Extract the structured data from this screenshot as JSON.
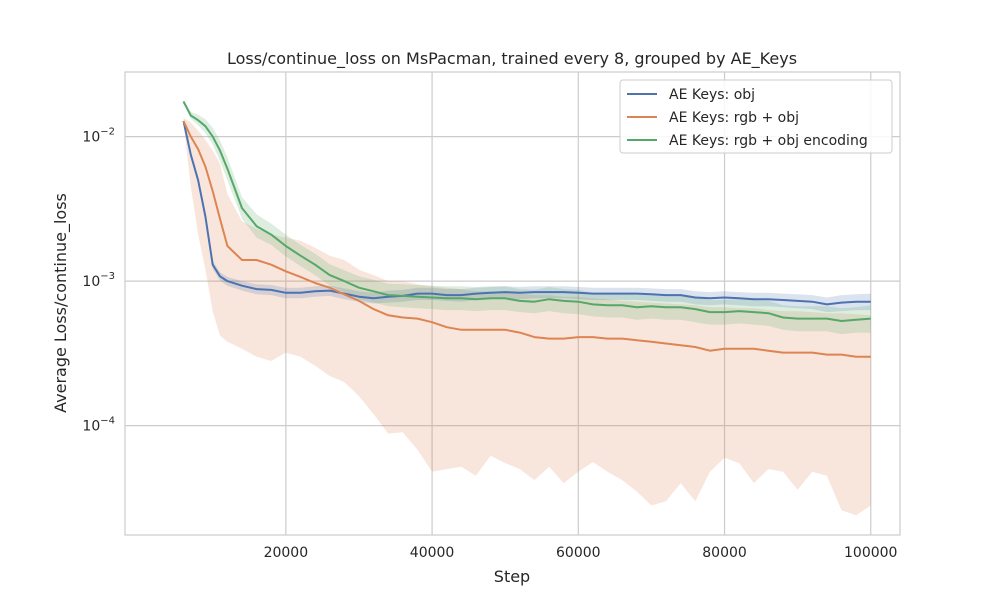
{
  "chart_data": {
    "type": "line",
    "title": "Loss/continue_loss on MsPacman, trained every 8, grouped by AE_Keys",
    "xlabel": "Step",
    "ylabel": "Average Loss/continue_loss",
    "xlim": [
      -2000,
      104000
    ],
    "xticks": [
      20000,
      40000,
      60000,
      80000,
      100000
    ],
    "xtick_labels": [
      "20000",
      "40000",
      "60000",
      "80000",
      "100000"
    ],
    "yscale": "log",
    "ylim": [
      1.75e-05,
      0.028
    ],
    "yticks": [
      0.0001,
      0.001,
      0.01
    ],
    "ytick_labels": [
      {
        "base": "10",
        "exp": "−4"
      },
      {
        "base": "10",
        "exp": "−3"
      },
      {
        "base": "10",
        "exp": "−2"
      }
    ],
    "grid": true,
    "legend_position": "top-right",
    "series": [
      {
        "name": "AE Keys: obj",
        "color": "#4c72b0",
        "x": [
          6000,
          7000,
          8000,
          9000,
          10000,
          11000,
          12000,
          14000,
          16000,
          18000,
          20000,
          22000,
          24000,
          26000,
          28000,
          30000,
          32000,
          34000,
          36000,
          38000,
          40000,
          42000,
          44000,
          46000,
          48000,
          50000,
          52000,
          54000,
          56000,
          58000,
          60000,
          62000,
          64000,
          66000,
          68000,
          70000,
          72000,
          74000,
          76000,
          78000,
          80000,
          82000,
          84000,
          86000,
          88000,
          90000,
          92000,
          94000,
          96000,
          98000,
          100000
        ],
        "y": [
          0.0128,
          0.0075,
          0.005,
          0.0028,
          0.0013,
          0.00108,
          0.001,
          0.00093,
          0.00088,
          0.00087,
          0.00083,
          0.00083,
          0.00085,
          0.00086,
          0.00082,
          0.00078,
          0.00076,
          0.00078,
          0.00079,
          0.00082,
          0.00082,
          0.0008,
          0.0008,
          0.00082,
          0.00083,
          0.00084,
          0.00083,
          0.00084,
          0.00084,
          0.00084,
          0.00083,
          0.00082,
          0.00082,
          0.00082,
          0.00082,
          0.00081,
          0.0008,
          0.0008,
          0.00077,
          0.00076,
          0.00077,
          0.00076,
          0.00075,
          0.00075,
          0.00074,
          0.00073,
          0.00072,
          0.00069,
          0.00071,
          0.00072,
          0.00072
        ],
        "band_low": [
          0.0126,
          0.0072,
          0.0047,
          0.0026,
          0.00122,
          0.00101,
          0.00093,
          0.00086,
          0.00081,
          0.0008,
          0.00076,
          0.00076,
          0.00078,
          0.00079,
          0.00075,
          0.00072,
          0.0007,
          0.00071,
          0.00072,
          0.00074,
          0.00074,
          0.00073,
          0.00072,
          0.00074,
          0.00075,
          0.00076,
          0.00075,
          0.00076,
          0.00076,
          0.00076,
          0.00075,
          0.00074,
          0.00074,
          0.00074,
          0.00074,
          0.00073,
          0.00072,
          0.00072,
          0.00069,
          0.00068,
          0.00069,
          0.00068,
          0.00067,
          0.00067,
          0.00066,
          0.00065,
          0.00064,
          0.00061,
          0.00062,
          0.00063,
          0.00063
        ],
        "band_high": [
          0.013,
          0.0078,
          0.0053,
          0.003,
          0.00138,
          0.00115,
          0.00107,
          0.001,
          0.00095,
          0.00094,
          0.0009,
          0.0009,
          0.00092,
          0.00093,
          0.00089,
          0.00085,
          0.00083,
          0.00086,
          0.00087,
          0.0009,
          0.0009,
          0.00088,
          0.00088,
          0.0009,
          0.00091,
          0.00092,
          0.00091,
          0.00092,
          0.00092,
          0.00092,
          0.00091,
          0.0009,
          0.0009,
          0.0009,
          0.0009,
          0.00089,
          0.00088,
          0.00088,
          0.00085,
          0.00084,
          0.00085,
          0.00084,
          0.00083,
          0.00083,
          0.00082,
          0.00081,
          0.0008,
          0.00077,
          0.0008,
          0.00081,
          0.00082
        ]
      },
      {
        "name": "AE Keys: rgb + obj",
        "color": "#dd8452",
        "x": [
          6000,
          7000,
          8000,
          9000,
          10000,
          11000,
          12000,
          14000,
          16000,
          18000,
          20000,
          22000,
          24000,
          26000,
          28000,
          30000,
          32000,
          34000,
          36000,
          38000,
          40000,
          42000,
          44000,
          46000,
          48000,
          50000,
          52000,
          54000,
          56000,
          58000,
          60000,
          62000,
          64000,
          66000,
          68000,
          70000,
          72000,
          74000,
          76000,
          78000,
          80000,
          82000,
          84000,
          86000,
          88000,
          90000,
          92000,
          94000,
          96000,
          98000,
          100000
        ],
        "y": [
          0.0128,
          0.01,
          0.0082,
          0.0062,
          0.0042,
          0.0027,
          0.00175,
          0.0014,
          0.0014,
          0.0013,
          0.00117,
          0.00107,
          0.00097,
          0.0009,
          0.00081,
          0.00073,
          0.00064,
          0.00058,
          0.00056,
          0.00055,
          0.00052,
          0.00048,
          0.00046,
          0.00046,
          0.00046,
          0.00046,
          0.00044,
          0.00041,
          0.0004,
          0.0004,
          0.00041,
          0.00041,
          0.0004,
          0.0004,
          0.00039,
          0.00038,
          0.00037,
          0.00036,
          0.00035,
          0.00033,
          0.00034,
          0.00034,
          0.00034,
          0.00033,
          0.00032,
          0.00032,
          0.00032,
          0.00031,
          0.00031,
          0.0003,
          0.0003
        ],
        "band_low": [
          0.0124,
          0.0045,
          0.0021,
          0.0012,
          0.00062,
          0.00042,
          0.00038,
          0.00034,
          0.0003,
          0.00028,
          0.00032,
          0.0003,
          0.00026,
          0.00022,
          0.0002,
          0.00016,
          0.00012,
          8.8e-05,
          9e-05,
          6.8e-05,
          4.8e-05,
          5e-05,
          5.2e-05,
          4.5e-05,
          6.2e-05,
          5.5e-05,
          5e-05,
          4.2e-05,
          5.2e-05,
          4e-05,
          4.8e-05,
          5.6e-05,
          4.8e-05,
          4.2e-05,
          3.5e-05,
          2.8e-05,
          3e-05,
          4e-05,
          3e-05,
          4.8e-05,
          6e-05,
          5.5e-05,
          4e-05,
          5e-05,
          4.8e-05,
          3.6e-05,
          4.8e-05,
          4.5e-05,
          2.6e-05,
          2.4e-05,
          2.8e-05
        ],
        "band_high": [
          0.0135,
          0.0125,
          0.011,
          0.0095,
          0.008,
          0.0065,
          0.004,
          0.0026,
          0.0023,
          0.0021,
          0.002,
          0.0019,
          0.0017,
          0.0015,
          0.0014,
          0.0012,
          0.0011,
          0.001,
          0.001,
          0.00095,
          0.00092,
          0.0009,
          0.00088,
          0.00085,
          0.00085,
          0.00083,
          0.00082,
          0.0008,
          0.0008,
          0.00078,
          0.00078,
          0.00076,
          0.00075,
          0.00073,
          0.00072,
          0.00071,
          0.0007,
          0.00069,
          0.00068,
          0.00066,
          0.00066,
          0.00065,
          0.00065,
          0.00063,
          0.00062,
          0.00062,
          0.00061,
          0.0006,
          0.0006,
          0.00059,
          0.00058
        ]
      },
      {
        "name": "AE Keys: rgb + obj encoding",
        "color": "#55a868",
        "x": [
          6000,
          7000,
          8000,
          9000,
          10000,
          11000,
          12000,
          14000,
          16000,
          18000,
          20000,
          22000,
          24000,
          26000,
          28000,
          30000,
          32000,
          34000,
          36000,
          38000,
          40000,
          42000,
          44000,
          46000,
          48000,
          50000,
          52000,
          54000,
          56000,
          58000,
          60000,
          62000,
          64000,
          66000,
          68000,
          70000,
          72000,
          74000,
          76000,
          78000,
          80000,
          82000,
          84000,
          86000,
          88000,
          90000,
          92000,
          94000,
          96000,
          98000,
          100000
        ],
        "y": [
          0.0175,
          0.014,
          0.013,
          0.0118,
          0.01,
          0.008,
          0.006,
          0.0032,
          0.0024,
          0.0021,
          0.00175,
          0.0015,
          0.0013,
          0.0011,
          0.001,
          0.0009,
          0.00085,
          0.0008,
          0.00079,
          0.00078,
          0.00077,
          0.00076,
          0.00076,
          0.00075,
          0.00076,
          0.00076,
          0.00073,
          0.00072,
          0.00075,
          0.00073,
          0.00072,
          0.00069,
          0.00068,
          0.00068,
          0.00066,
          0.00067,
          0.00066,
          0.00066,
          0.00064,
          0.00061,
          0.00061,
          0.00062,
          0.00061,
          0.0006,
          0.00056,
          0.00055,
          0.00055,
          0.00055,
          0.00053,
          0.00054,
          0.00055
        ],
        "band_low": [
          0.017,
          0.0133,
          0.012,
          0.0106,
          0.0088,
          0.0068,
          0.005,
          0.0027,
          0.002,
          0.00178,
          0.00148,
          0.00127,
          0.0011,
          0.00093,
          0.00084,
          0.00075,
          0.00071,
          0.00067,
          0.00066,
          0.00065,
          0.00064,
          0.00063,
          0.00063,
          0.00062,
          0.00063,
          0.00063,
          0.00061,
          0.0006,
          0.00062,
          0.0006,
          0.00059,
          0.00057,
          0.00056,
          0.00056,
          0.00054,
          0.00055,
          0.00054,
          0.00054,
          0.00052,
          0.0005,
          0.0005,
          0.00051,
          0.0005,
          0.00049,
          0.00046,
          0.00045,
          0.00045,
          0.00045,
          0.00043,
          0.00044,
          0.00044
        ],
        "band_high": [
          0.018,
          0.0148,
          0.0142,
          0.0132,
          0.0115,
          0.0094,
          0.0072,
          0.0038,
          0.0029,
          0.0025,
          0.0021,
          0.00178,
          0.00155,
          0.00131,
          0.00119,
          0.00108,
          0.00102,
          0.00096,
          0.00095,
          0.00094,
          0.00093,
          0.00092,
          0.00092,
          0.00091,
          0.00092,
          0.00092,
          0.00088,
          0.00087,
          0.00091,
          0.00088,
          0.00087,
          0.00083,
          0.00082,
          0.00082,
          0.0008,
          0.00081,
          0.0008,
          0.0008,
          0.00078,
          0.00074,
          0.00074,
          0.00075,
          0.00074,
          0.00073,
          0.00068,
          0.00067,
          0.00067,
          0.00067,
          0.00065,
          0.00066,
          0.00068
        ]
      }
    ]
  }
}
